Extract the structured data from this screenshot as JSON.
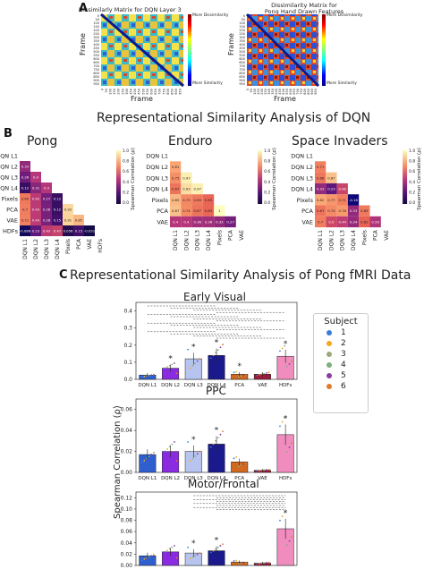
{
  "panel_a": {
    "letter": "A",
    "left_title": "Dissimilarly Matrix for DQN Layer 3",
    "right_title_line1": "Dissimilarity Matrix for",
    "right_title_line2": "Pong Hand Drawn Features",
    "xlabel": "Frame",
    "ylabel": "Frame",
    "colorbar_top": "More Dissimilarity",
    "colorbar_bottom": "More Similarity",
    "ticks": [
      "0",
      "50",
      "100",
      "150",
      "200",
      "250",
      "300",
      "350",
      "400",
      "450",
      "500",
      "550",
      "600",
      "650",
      "700",
      "750",
      "800",
      "850",
      "900",
      "950"
    ]
  },
  "panel_b": {
    "letter": "B",
    "title": "Representational Similarity Analysis of DQN",
    "colorbar_label": "Spearman Correlation (ρ)",
    "colorbar_ticks": [
      "1.0",
      "0.8",
      "0.6",
      "0.4",
      "0.2",
      "0.0"
    ],
    "labels": [
      "DQN L1",
      "DQN L2",
      "DQN L3",
      "DQN L4",
      "Pixels",
      "PCA",
      "VAE",
      "HDFs"
    ],
    "games": [
      {
        "name": "Pong",
        "labels_count": 8,
        "rows": [
          [],
          [
            0.33
          ],
          [
            0.26,
            0.4
          ],
          [
            0.12,
            0.31,
            0.4
          ],
          [
            0.69,
            0.42,
            0.27,
            0.12
          ],
          [
            0.7,
            0.43,
            0.28,
            0.12,
            0.92
          ],
          [
            0.71,
            0.43,
            0.28,
            0.15,
            0.91,
            0.85
          ],
          [
            -0.086,
            0.23,
            0.43,
            0.47,
            0.056,
            0.15,
            -0.031
          ]
        ]
      },
      {
        "name": "Enduro",
        "labels_count": 7,
        "rows": [
          [],
          [
            0.81
          ],
          [
            0.75,
            0.97
          ],
          [
            0.67,
            0.93,
            0.97
          ],
          [
            0.85,
            0.73,
            0.69,
            0.63
          ],
          [
            0.87,
            0.74,
            0.67,
            0.63,
            1
          ],
          [
            0.4,
            0.4,
            0.36,
            0.36,
            0.33,
            0.27
          ]
        ]
      },
      {
        "name": "Space Invaders",
        "labels_count": 7,
        "rows": [
          [],
          [
            0.71
          ],
          [
            0.68,
            0.87
          ],
          [
            0.33,
            0.23,
            0.48
          ],
          [
            0.82,
            0.77,
            0.71,
            -0.16
          ],
          [
            0.67,
            0.74,
            0.78,
            0.33,
            0.69
          ],
          [
            0.7,
            0.5,
            0.44,
            0.34,
            0.62,
            0.39
          ]
        ]
      }
    ]
  },
  "panel_c": {
    "letter": "C",
    "title": "Representational Similarity Analysis of Pong fMRI Data",
    "ylabel": "Spearman Correlation (ρ)",
    "legend_title": "Subject",
    "legend_entries": [
      "1",
      "2",
      "3",
      "4",
      "5",
      "6"
    ]
  },
  "chart_data": [
    {
      "type": "bar",
      "title": "Early Visual",
      "categories": [
        "DQN L1",
        "DQN L2",
        "DQN L3",
        "DQN L4",
        "PCA",
        "VAE",
        "HDFs"
      ],
      "values": [
        0.025,
        0.065,
        0.12,
        0.14,
        0.03,
        0.03,
        0.135
      ],
      "ylim": [
        0,
        0.45
      ],
      "yticks": [
        "0.0",
        "0.1",
        "0.2",
        "0.3",
        "0.4"
      ],
      "significance_stars": [
        false,
        true,
        true,
        true,
        true,
        false,
        true
      ]
    },
    {
      "type": "bar",
      "title": "PPC",
      "categories": [
        "DQN L1",
        "DQN L2",
        "DQN L3",
        "DQN L4",
        "PCA",
        "VAE",
        "HDFs"
      ],
      "values": [
        0.017,
        0.02,
        0.02,
        0.027,
        0.01,
        0.002,
        0.036
      ],
      "ylim": [
        0,
        0.07
      ],
      "yticks": [
        "0.00",
        "0.02",
        "0.04",
        "0.06"
      ],
      "significance_stars": [
        false,
        false,
        true,
        true,
        false,
        false,
        true
      ]
    },
    {
      "type": "bar",
      "title": "Motor/Frontal",
      "categories": [
        "DQN L1",
        "DQN L2",
        "DQN L3",
        "DQN L4",
        "PCA",
        "VAE",
        "HDFs"
      ],
      "values": [
        0.017,
        0.024,
        0.022,
        0.026,
        0.006,
        0.004,
        0.065
      ],
      "ylim": [
        0,
        0.13
      ],
      "yticks": [
        "0.00",
        "0.02",
        "0.04",
        "0.06",
        "0.08",
        "0.10",
        "0.12"
      ],
      "significance_stars": [
        false,
        false,
        true,
        true,
        false,
        false,
        true
      ]
    }
  ]
}
